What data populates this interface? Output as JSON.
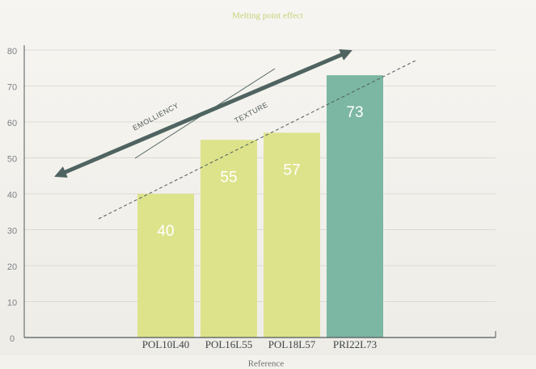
{
  "chart_data": {
    "type": "bar",
    "title": "Melting point effect",
    "x_label": "Reference",
    "categories": [
      "POL10L40",
      "POL16L55",
      "POL18L57",
      "PRI22L73"
    ],
    "values": [
      40,
      55,
      57,
      73
    ],
    "colors": [
      "#dde38b",
      "#dde38b",
      "#dde38b",
      "#7cb7a3"
    ],
    "ylim": [
      0,
      80
    ],
    "yticks": [
      0,
      10,
      20,
      30,
      40,
      50,
      60,
      70,
      80
    ],
    "grid": true,
    "annotations": [
      "EMOLLIENCY",
      "TEXTURE"
    ]
  }
}
